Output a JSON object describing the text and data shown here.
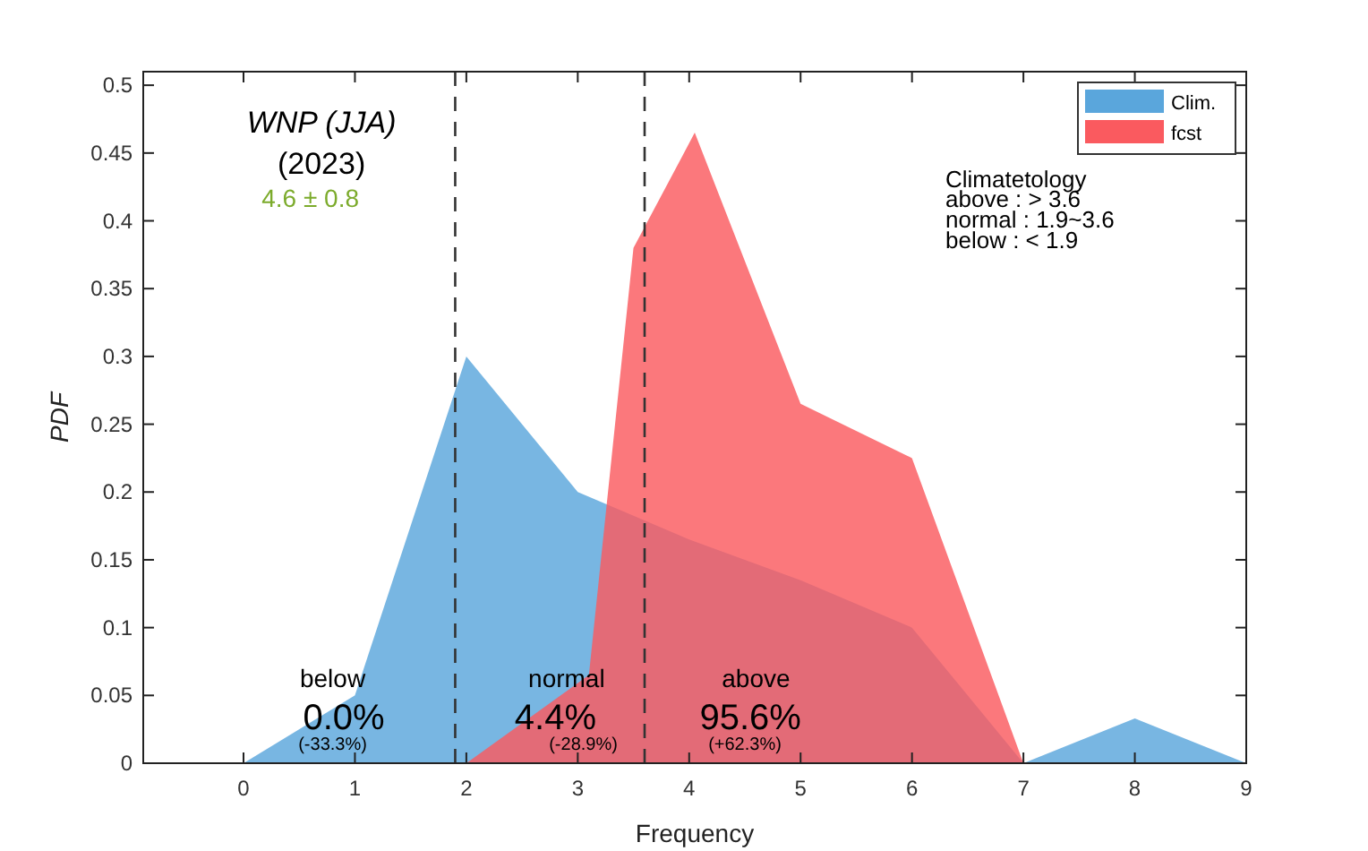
{
  "chart_data": {
    "type": "area",
    "title": "WNP (JJA)",
    "subtitle": "(2023)",
    "xlabel": "Frequency",
    "ylabel": "PDF",
    "xlim": [
      -0.9,
      9
    ],
    "xticks": [
      0,
      1,
      2,
      3,
      4,
      5,
      6,
      7,
      8,
      9
    ],
    "ylim": [
      0,
      0.51
    ],
    "yticks": [
      0,
      0.05,
      0.1,
      0.15,
      0.2,
      0.25,
      0.3,
      0.35,
      0.4,
      0.45,
      0.5
    ],
    "series": [
      {
        "name": "Clim.",
        "color": "#5aa6dc",
        "x": [
          0,
          1,
          2,
          3,
          4,
          5,
          6,
          7,
          8,
          9
        ],
        "values": [
          0,
          0.05,
          0.3,
          0.2,
          0.165,
          0.135,
          0.1,
          0,
          0.033,
          0
        ]
      },
      {
        "name": "fcst",
        "color": "#fa5a5f",
        "x": [
          2,
          3.1,
          3.5,
          4.05,
          5,
          6,
          7
        ],
        "values": [
          0,
          0.065,
          0.38,
          0.465,
          0.265,
          0.225,
          0
        ]
      }
    ],
    "ref_lines": [
      {
        "axis": "x",
        "value": 1.9,
        "line_style": "dashed"
      },
      {
        "axis": "x",
        "value": 3.6,
        "line_style": "dashed"
      }
    ],
    "annotations": [
      "4.6 ± 0.8",
      "Climatetology",
      "above : > 3.6",
      "normal : 1.9~3.6",
      "below : < 1.9",
      "below",
      "0.0%",
      "(-33.3%)",
      "normal",
      "4.4%",
      "(-28.9%)",
      "above",
      "95.6%",
      "(+62.3%)"
    ],
    "legend": "top right",
    "grid": false
  }
}
